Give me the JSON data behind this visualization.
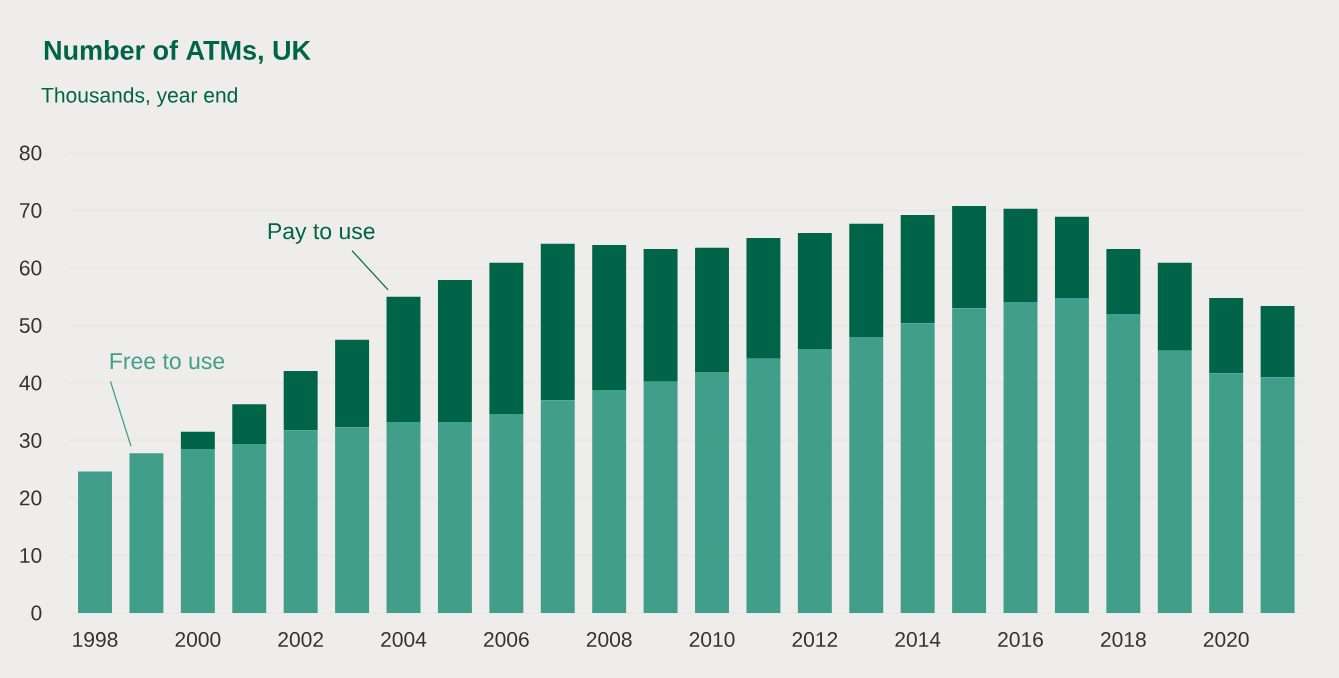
{
  "chart_data": {
    "type": "bar",
    "title": "Number of ATMs, UK",
    "subtitle": "Thousands, year end",
    "categories": [
      "1998",
      null,
      "2000",
      null,
      "2002",
      null,
      "2004",
      null,
      "2006",
      null,
      "2008",
      null,
      "2010",
      null,
      "2012",
      null,
      "2014",
      null,
      "2016",
      null,
      "2018",
      null,
      "2020",
      null
    ],
    "stacked": true,
    "series": [
      {
        "name": "Free to use",
        "color": "#409e8a",
        "values": [
          24.6,
          27.8,
          28.5,
          29.4,
          31.8,
          32.3,
          33.2,
          33.2,
          34.6,
          37.0,
          38.8,
          40.2,
          41.9,
          44.2,
          45.9,
          48.0,
          50.4,
          53.0,
          54.1,
          54.8,
          52.0,
          45.6,
          41.7,
          41.0
        ]
      },
      {
        "name": "Pay to use",
        "color": "#006548",
        "values": [
          0,
          0,
          3.0,
          6.9,
          10.3,
          15.2,
          21.8,
          24.7,
          26.3,
          27.2,
          25.2,
          23.1,
          21.6,
          21.0,
          20.2,
          19.7,
          18.8,
          17.8,
          16.2,
          14.1,
          11.3,
          15.3,
          13.1,
          12.4
        ]
      }
    ],
    "ylim": [
      0,
      80
    ],
    "yticks": [
      0,
      10,
      20,
      30,
      40,
      50,
      60,
      70,
      80
    ],
    "grid": "y"
  }
}
